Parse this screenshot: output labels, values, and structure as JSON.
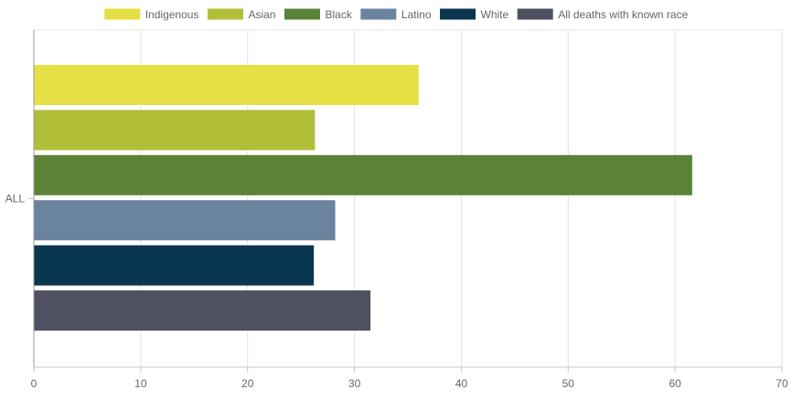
{
  "chart_data": {
    "type": "bar",
    "orientation": "horizontal",
    "categories": [
      "ALL"
    ],
    "series": [
      {
        "name": "Indigenous",
        "values": [
          36.0
        ],
        "color": "#e6df44"
      },
      {
        "name": "Asian",
        "values": [
          26.3
        ],
        "color": "#b1be38"
      },
      {
        "name": "Black",
        "values": [
          61.6
        ],
        "color": "#5b8337"
      },
      {
        "name": "Latino",
        "values": [
          28.2
        ],
        "color": "#6a839f"
      },
      {
        "name": "White",
        "values": [
          26.2
        ],
        "color": "#08374f"
      },
      {
        "name": "All deaths with known race",
        "values": [
          31.5
        ],
        "color": "#4f5060"
      }
    ],
    "xlim": [
      0,
      70
    ],
    "x_ticks": [
      "0",
      "10",
      "20",
      "30",
      "40",
      "50",
      "60",
      "70"
    ],
    "grid": true,
    "legend_position": "top",
    "title": "",
    "xlabel": "",
    "ylabel": ""
  }
}
